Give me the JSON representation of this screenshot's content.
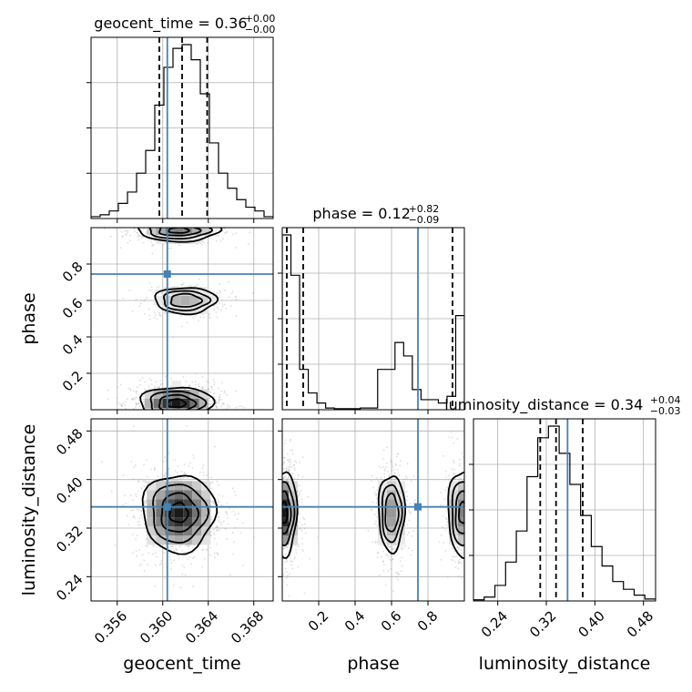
{
  "chart_data": {
    "type": "corner-plot",
    "parameters": [
      "geocent_time",
      "phase",
      "luminosity_distance"
    ],
    "truths": {
      "geocent_time": 0.3604,
      "phase": 0.745,
      "luminosity_distance": 0.355
    },
    "ranges": {
      "geocent_time": [
        0.3537,
        0.3697
      ],
      "phase": [
        0.0,
        1.0
      ],
      "luminosity_distance": [
        0.2,
        0.5
      ]
    },
    "ticks": {
      "geocent_time": {
        "values": [
          0.356,
          0.36,
          0.364,
          0.368
        ],
        "labels": [
          "0.356",
          "0.360",
          "0.364",
          "0.368"
        ]
      },
      "phase": {
        "values": [
          0.2,
          0.4,
          0.6,
          0.8
        ],
        "labels": [
          "0.2",
          "0.4",
          "0.6",
          "0.8"
        ]
      },
      "luminosity_distance": {
        "values": [
          0.24,
          0.32,
          0.4,
          0.48
        ],
        "labels": [
          "0.24",
          "0.32",
          "0.40",
          "0.48"
        ]
      }
    },
    "titles": {
      "geocent_time": {
        "text": "geocent_time = 0.36",
        "plus": "+0.00",
        "minus": "−0.00"
      },
      "phase": {
        "text": "phase = 0.12",
        "plus": "+0.82",
        "minus": "−0.09"
      },
      "luminosity_distance": {
        "text": "luminosity_distance = 0.34",
        "plus": "+0.04",
        "minus": "−0.03"
      }
    },
    "quantiles": {
      "geocent_time": [
        0.3597,
        0.3617,
        0.3639
      ],
      "phase": [
        0.025,
        0.115,
        0.935
      ],
      "luminosity_distance": [
        0.31,
        0.336,
        0.38
      ]
    },
    "histograms": {
      "geocent_time": {
        "edges_range": [
          0.3537,
          0.3697
        ],
        "counts": [
          0.5,
          1,
          2,
          4,
          7,
          12,
          18,
          30,
          40,
          45,
          46,
          42,
          33,
          20,
          12,
          8,
          5,
          3,
          2,
          0.5
        ]
      },
      "phase": {
        "edges_range": [
          0.0,
          1.0
        ],
        "counts": [
          52,
          40,
          12,
          5,
          2,
          0.5,
          0.3,
          0.3,
          0.3,
          0.5,
          0.5,
          12,
          12,
          20,
          16,
          6,
          3,
          3,
          2,
          4,
          28
        ]
      },
      "luminosity_distance": {
        "edges_range": [
          0.2,
          0.5
        ],
        "counts": [
          0.3,
          1,
          4,
          10,
          18,
          32,
          42,
          45,
          38,
          30,
          22,
          14,
          9,
          5,
          3,
          1.5,
          0.5
        ]
      }
    },
    "blobs": {
      "geocent_time_vs_phase": [
        {
          "cx": 0.3614,
          "cy": 0.985,
          "sx": 0.0018,
          "sy": 0.03,
          "w": 0.55
        },
        {
          "cx": 0.362,
          "cy": 0.6,
          "sx": 0.0015,
          "sy": 0.04,
          "w": 0.35
        },
        {
          "cx": 0.3612,
          "cy": 0.035,
          "sx": 0.0016,
          "sy": 0.045,
          "w": 1.0
        }
      ],
      "geocent_time_vs_luminosity_distance": [
        {
          "cx": 0.3614,
          "cy": 0.345,
          "sx": 0.0016,
          "sy": 0.032,
          "w": 1.0
        }
      ],
      "phase_vs_luminosity_distance": [
        {
          "cx": 0.01,
          "cy": 0.345,
          "sx": 0.035,
          "sy": 0.035,
          "w": 1.0
        },
        {
          "cx": 0.6,
          "cy": 0.345,
          "sx": 0.04,
          "sy": 0.035,
          "w": 0.45
        },
        {
          "cx": 0.99,
          "cy": 0.345,
          "sx": 0.04,
          "sy": 0.035,
          "w": 0.55
        }
      ]
    },
    "colors": {
      "truth": "#4682b4",
      "hist": "#000000",
      "quantile": "#000000",
      "points": "#9e9e9e"
    },
    "grid": true
  }
}
